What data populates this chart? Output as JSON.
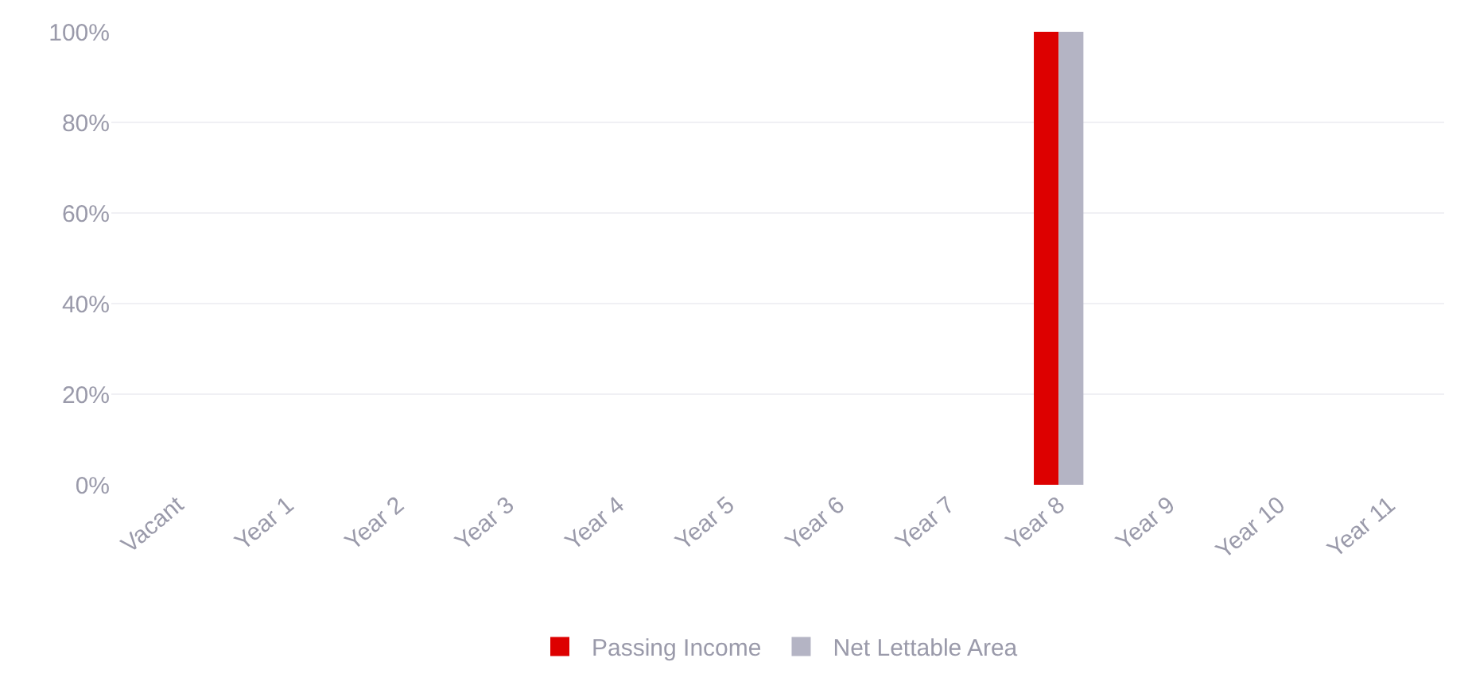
{
  "chart_data": {
    "type": "bar",
    "categories": [
      "Vacant",
      "Year 1",
      "Year 2",
      "Year 3",
      "Year 4",
      "Year 5",
      "Year 6",
      "Year 7",
      "Year 8",
      "Year 9",
      "Year 10",
      "Year 11"
    ],
    "series": [
      {
        "name": "Passing Income",
        "color": "#dd0000",
        "values": [
          0,
          0,
          0,
          0,
          0,
          0,
          0,
          0,
          100,
          0,
          0,
          0
        ]
      },
      {
        "name": "Net Lettable Area",
        "color": "#b4b4c4",
        "values": [
          0,
          0,
          0,
          0,
          0,
          0,
          0,
          0,
          100,
          0,
          0,
          0
        ]
      }
    ],
    "ylim": [
      0,
      100
    ],
    "yticks": [
      {
        "value": 0,
        "label": "0%"
      },
      {
        "value": 20,
        "label": "20%"
      },
      {
        "value": 40,
        "label": "40%"
      },
      {
        "value": 60,
        "label": "60%"
      },
      {
        "value": 80,
        "label": "80%"
      },
      {
        "value": 100,
        "label": "100%"
      }
    ],
    "grid": "y",
    "legend": "bottom"
  }
}
